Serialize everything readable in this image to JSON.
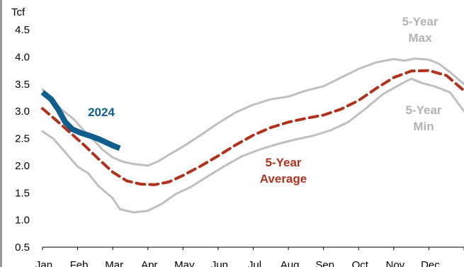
{
  "chart_data": {
    "type": "line",
    "unit_label": "Tcf",
    "ylim": [
      0.5,
      4.5
    ],
    "yticks": [
      0.5,
      1.0,
      1.5,
      2.0,
      2.5,
      3.0,
      3.5,
      4.0,
      4.5
    ],
    "ytick_labels": [
      "0.5",
      "1.0",
      "1.5",
      "2.0",
      "2.5",
      "3.0",
      "3.5",
      "4.0",
      "4.5"
    ],
    "x_categories": [
      "Jan",
      "Feb",
      "Mar",
      "Apr",
      "May",
      "Jun",
      "Jul",
      "Aug",
      "Sep",
      "Oct",
      "Nov",
      "Dec"
    ],
    "xlim": [
      0,
      12
    ],
    "grid": false,
    "series": [
      {
        "name": "5-Year Max",
        "label_lines": [
          "5-Year",
          "Max"
        ],
        "color": "#bfbfbf",
        "style": "solid",
        "points": [
          [
            0.0,
            3.4
          ],
          [
            0.3,
            3.18
          ],
          [
            0.6,
            3.0
          ],
          [
            0.9,
            2.85
          ],
          [
            1.1,
            2.7
          ],
          [
            1.3,
            2.56
          ],
          [
            1.5,
            2.44
          ],
          [
            1.7,
            2.3
          ],
          [
            2.0,
            2.15
          ],
          [
            2.3,
            2.07
          ],
          [
            2.6,
            2.03
          ],
          [
            3.0,
            2.0
          ],
          [
            3.3,
            2.08
          ],
          [
            3.6,
            2.2
          ],
          [
            4.0,
            2.35
          ],
          [
            4.5,
            2.56
          ],
          [
            5.0,
            2.78
          ],
          [
            5.5,
            2.98
          ],
          [
            6.0,
            3.12
          ],
          [
            6.5,
            3.22
          ],
          [
            7.0,
            3.27
          ],
          [
            7.5,
            3.38
          ],
          [
            8.0,
            3.46
          ],
          [
            8.5,
            3.62
          ],
          [
            9.0,
            3.78
          ],
          [
            9.5,
            3.9
          ],
          [
            10.0,
            3.96
          ],
          [
            10.3,
            3.93
          ],
          [
            10.6,
            3.97
          ],
          [
            11.0,
            3.95
          ],
          [
            11.3,
            3.87
          ],
          [
            11.6,
            3.72
          ],
          [
            12.0,
            3.5
          ]
        ]
      },
      {
        "name": "5-Year Average",
        "label_lines": [
          "5-Year",
          "Average"
        ],
        "color": "#b0321e",
        "style": "dashed",
        "points": [
          [
            0.0,
            3.05
          ],
          [
            0.4,
            2.83
          ],
          [
            0.8,
            2.6
          ],
          [
            1.2,
            2.37
          ],
          [
            1.6,
            2.12
          ],
          [
            2.0,
            1.88
          ],
          [
            2.4,
            1.72
          ],
          [
            2.8,
            1.66
          ],
          [
            3.2,
            1.65
          ],
          [
            3.6,
            1.7
          ],
          [
            4.0,
            1.82
          ],
          [
            4.5,
            1.99
          ],
          [
            5.0,
            2.18
          ],
          [
            5.5,
            2.38
          ],
          [
            6.0,
            2.56
          ],
          [
            6.5,
            2.7
          ],
          [
            7.0,
            2.8
          ],
          [
            7.5,
            2.87
          ],
          [
            8.0,
            2.93
          ],
          [
            8.5,
            3.04
          ],
          [
            9.0,
            3.2
          ],
          [
            9.5,
            3.42
          ],
          [
            10.0,
            3.62
          ],
          [
            10.5,
            3.74
          ],
          [
            11.0,
            3.75
          ],
          [
            11.5,
            3.66
          ],
          [
            12.0,
            3.38
          ]
        ]
      },
      {
        "name": "5-Year Min",
        "label_lines": [
          "5-Year",
          "Min"
        ],
        "color": "#bfbfbf",
        "style": "solid",
        "points": [
          [
            0.0,
            2.63
          ],
          [
            0.3,
            2.5
          ],
          [
            0.6,
            2.28
          ],
          [
            1.0,
            1.98
          ],
          [
            1.3,
            1.86
          ],
          [
            1.6,
            1.62
          ],
          [
            2.0,
            1.4
          ],
          [
            2.2,
            1.2
          ],
          [
            2.6,
            1.14
          ],
          [
            3.0,
            1.17
          ],
          [
            3.4,
            1.3
          ],
          [
            3.8,
            1.48
          ],
          [
            4.2,
            1.6
          ],
          [
            4.7,
            1.8
          ],
          [
            5.2,
            2.0
          ],
          [
            5.7,
            2.18
          ],
          [
            6.2,
            2.3
          ],
          [
            6.7,
            2.4
          ],
          [
            7.2,
            2.48
          ],
          [
            7.7,
            2.55
          ],
          [
            8.2,
            2.65
          ],
          [
            8.7,
            2.8
          ],
          [
            9.2,
            3.05
          ],
          [
            9.7,
            3.32
          ],
          [
            10.2,
            3.5
          ],
          [
            10.5,
            3.6
          ],
          [
            10.8,
            3.52
          ],
          [
            11.2,
            3.45
          ],
          [
            11.6,
            3.35
          ],
          [
            12.0,
            3.0
          ]
        ]
      },
      {
        "name": "2024",
        "label_lines": [
          "2024"
        ],
        "color": "#0f5e8c",
        "style": "solid",
        "points": [
          [
            0.0,
            3.35
          ],
          [
            0.25,
            3.22
          ],
          [
            0.45,
            3.03
          ],
          [
            0.65,
            2.8
          ],
          [
            0.85,
            2.67
          ],
          [
            1.1,
            2.6
          ],
          [
            1.35,
            2.55
          ],
          [
            1.6,
            2.49
          ],
          [
            1.8,
            2.43
          ],
          [
            2.0,
            2.37
          ],
          [
            2.2,
            2.32
          ]
        ]
      }
    ]
  }
}
